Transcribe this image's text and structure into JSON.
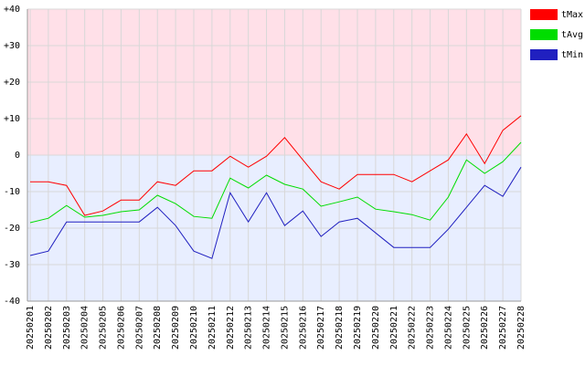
{
  "chart_data": {
    "type": "line",
    "categories": [
      "20250201",
      "20250202",
      "20250203",
      "20250204",
      "20250205",
      "20250206",
      "20250207",
      "20250208",
      "20250209",
      "20250210",
      "20250211",
      "20250212",
      "20250213",
      "20250214",
      "20250215",
      "20250216",
      "20250217",
      "20250218",
      "20250219",
      "20250220",
      "20250221",
      "20250222",
      "20250223",
      "20250224",
      "20250225",
      "20250226",
      "20250227",
      "20250228"
    ],
    "series": [
      {
        "name": "tMax",
        "color": "#ff0000",
        "values": [
          -7.3,
          -7.3,
          -8.3,
          -16.5,
          -15.3,
          -12.3,
          -12.3,
          -7.3,
          -8.3,
          -4.3,
          -4.3,
          -0.3,
          -3.3,
          -0.3,
          4.8,
          -1.3,
          -7.3,
          -9.3,
          -5.3,
          -5.3,
          -5.3,
          -7.3,
          -4.3,
          -1.3,
          5.8,
          -2.3,
          6.8,
          10.8
        ]
      },
      {
        "name": "tAvg",
        "color": "#00dd00",
        "values": [
          -18.5,
          -17.3,
          -13.8,
          -17,
          -16.5,
          -15.5,
          -15,
          -11,
          -13.3,
          -16.8,
          -17.3,
          -6.3,
          -9,
          -5.5,
          -8,
          -9.3,
          -14,
          -12.8,
          -11.5,
          -14.8,
          -15.5,
          -16.3,
          -17.8,
          -11.5,
          -1.3,
          -5,
          -1.8,
          3.5
        ]
      },
      {
        "name": "tMin",
        "color": "#2020c0",
        "values": [
          -27.5,
          -26.3,
          -18.3,
          -18.3,
          -18.3,
          -18.3,
          -18.3,
          -14.3,
          -19.3,
          -26.3,
          -28.3,
          -10.3,
          -18.3,
          -10.3,
          -19.3,
          -15.3,
          -22.3,
          -18.3,
          -17.3,
          -21.3,
          -25.3,
          -25.3,
          -25.3,
          -20.3,
          -14.3,
          -8.3,
          -11.3,
          -3.3
        ]
      }
    ],
    "ylim": [
      -40,
      40
    ],
    "yticks": [
      {
        "value": 40,
        "label": "+40"
      },
      {
        "value": 30,
        "label": "+30"
      },
      {
        "value": 20,
        "label": "+20"
      },
      {
        "value": 10,
        "label": "+10"
      },
      0,
      -10,
      -20,
      -30,
      -40
    ],
    "grid": true,
    "legend": "top-right",
    "band_colors": {
      "above": "#ffe0e8",
      "below": "#e8eeff"
    }
  }
}
